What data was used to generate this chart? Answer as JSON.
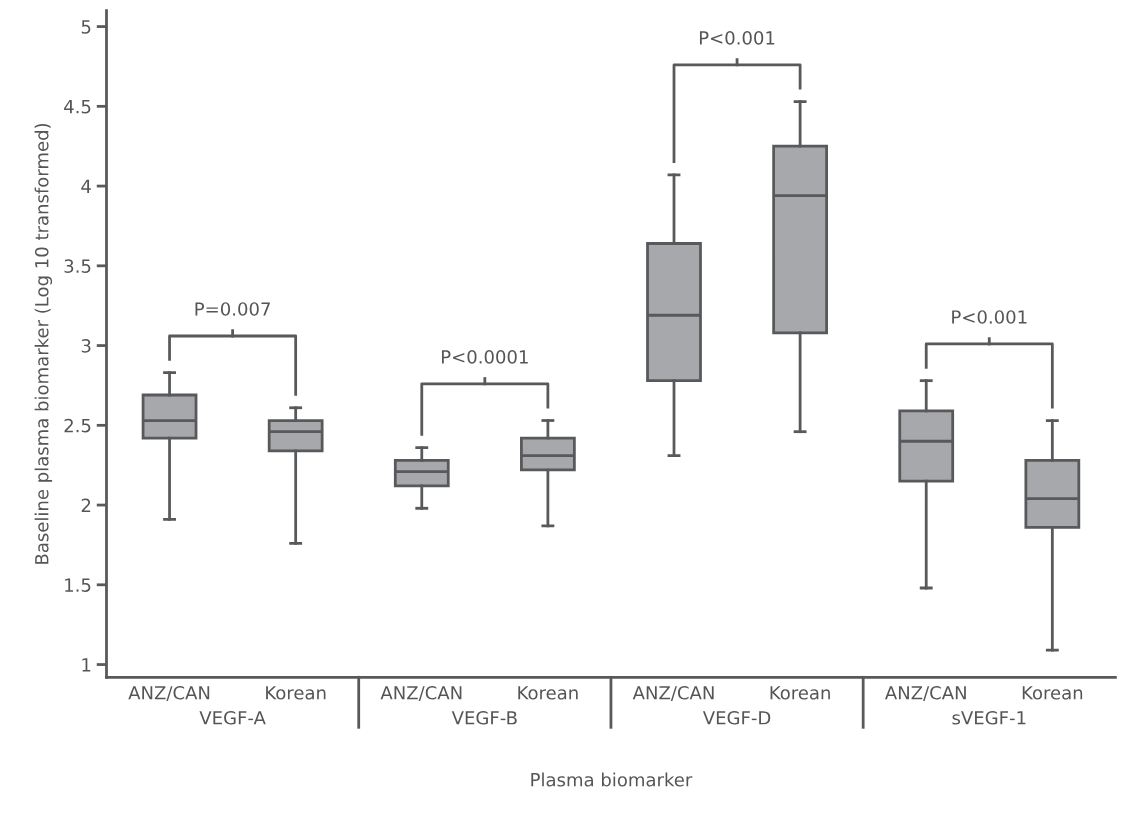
{
  "chart_data": {
    "type": "box",
    "xlabel": "Plasma biomarker",
    "ylabel": "Baseline plasma biomarker (Log 10 transformed)",
    "categories": [
      "ANZ/CAN",
      "Korean",
      "ANZ/CAN",
      "Korean",
      "ANZ/CAN",
      "Korean",
      "ANZ/CAN",
      "Korean"
    ],
    "color": "#a7a8ab",
    "boxes": [
      {
        "low": 1.91,
        "q1": 2.42,
        "median": 2.53,
        "q3": 2.69,
        "high": 2.83
      },
      {
        "low": 1.76,
        "q1": 2.34,
        "median": 2.46,
        "q3": 2.53,
        "high": 2.61
      },
      {
        "low": 1.98,
        "q1": 2.12,
        "median": 2.21,
        "q3": 2.28,
        "high": 2.36
      },
      {
        "low": 1.87,
        "q1": 2.22,
        "median": 2.31,
        "q3": 2.42,
        "high": 2.53
      },
      {
        "low": 2.31,
        "q1": 2.78,
        "median": 3.19,
        "q3": 3.64,
        "high": 4.07
      },
      {
        "low": 2.46,
        "q1": 3.08,
        "median": 3.94,
        "q3": 4.25,
        "high": 4.53
      },
      {
        "low": 1.48,
        "q1": 2.15,
        "median": 2.4,
        "q3": 2.59,
        "high": 2.78
      },
      {
        "low": 1.09,
        "q1": 1.86,
        "median": 2.04,
        "q3": 2.28,
        "high": 2.53
      }
    ],
    "ylim": [
      0.92,
      5.1
    ],
    "yticks": [
      1,
      1.5,
      2,
      2.5,
      3,
      3.5,
      4,
      4.5,
      5
    ],
    "grid": false,
    "annotations": [
      "P=0.007",
      "P<0.0001",
      "P<0.001",
      "P<0.001",
      "VEGF-A",
      "VEGF-B",
      "VEGF-D",
      "sVEGF-1"
    ]
  }
}
